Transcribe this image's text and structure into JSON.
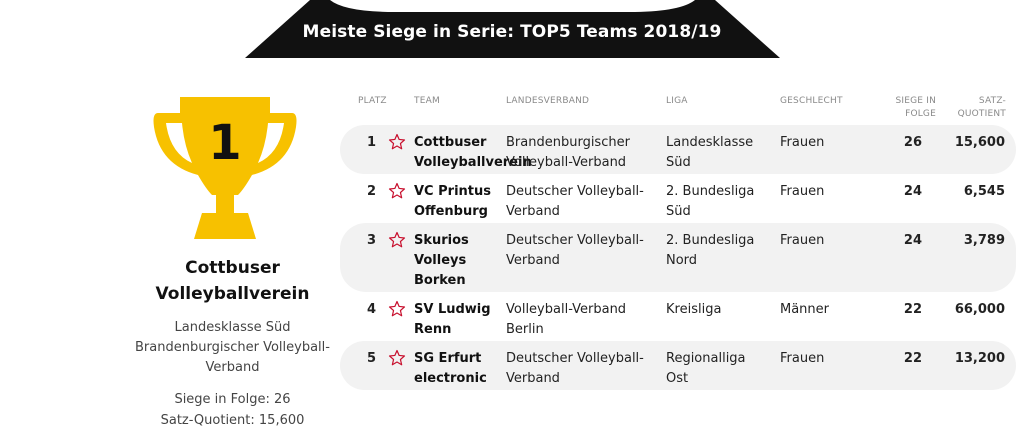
{
  "banner": {
    "title": "Meiste Siege in Serie: TOP5 Teams 2018/19"
  },
  "winner": {
    "rank": "1",
    "name_line1": "Cottbuser",
    "name_line2": "Volleyballverein",
    "liga": "Landesklasse Süd",
    "verband_line1": "Brandenburgischer Volleyball-",
    "verband_line2": "Verband",
    "siege": "Siege in Folge: 26",
    "quotient": "Satz-Quotient: 15,600",
    "trophy_color": "#f7c100"
  },
  "table": {
    "headers": {
      "platz": "PLATZ",
      "team": "TEAM",
      "verband": "LANDESVERBAND",
      "liga": "LIGA",
      "geschlecht": "GESCHLECHT",
      "siege_l1": "SIEGE IN",
      "siege_l2": "FOLGE",
      "satz_l1": "SATZ-",
      "satz_l2": "QUOTIENT"
    },
    "rows": [
      {
        "rank": "1",
        "team_l1": "Cottbuser",
        "team_l2": "Volleyballverein",
        "team_l3": "",
        "verband_l1": "Brandenburgischer",
        "verband_l2": "Volleyball-Verband",
        "liga_l1": "Landesklasse",
        "liga_l2": "Süd",
        "geschlecht": "Frauen",
        "siege": "26",
        "quotient": "15,600"
      },
      {
        "rank": "2",
        "team_l1": "VC Printus",
        "team_l2": "Offenburg",
        "team_l3": "",
        "verband_l1": "Deutscher Volleyball-",
        "verband_l2": "Verband",
        "liga_l1": "2. Bundesliga",
        "liga_l2": "Süd",
        "geschlecht": "Frauen",
        "siege": "24",
        "quotient": "6,545"
      },
      {
        "rank": "3",
        "team_l1": "Skurios",
        "team_l2": "Volleys",
        "team_l3": "Borken",
        "verband_l1": "Deutscher Volleyball-",
        "verband_l2": "Verband",
        "liga_l1": "2. Bundesliga",
        "liga_l2": "Nord",
        "geschlecht": "Frauen",
        "siege": "24",
        "quotient": "3,789"
      },
      {
        "rank": "4",
        "team_l1": "SV Ludwig",
        "team_l2": "Renn",
        "team_l3": "",
        "verband_l1": "Volleyball-Verband",
        "verband_l2": "Berlin",
        "liga_l1": "Kreisliga",
        "liga_l2": "",
        "geschlecht": "Männer",
        "siege": "22",
        "quotient": "66,000"
      },
      {
        "rank": "5",
        "team_l1": "SG Erfurt",
        "team_l2": "electronic",
        "team_l3": "",
        "verband_l1": "Deutscher Volleyball-",
        "verband_l2": "Verband",
        "liga_l1": "Regionalliga",
        "liga_l2": "Ost",
        "geschlecht": "Frauen",
        "siege": "22",
        "quotient": "13,200"
      }
    ]
  },
  "colors": {
    "banner": "#111111",
    "star": "#c8102e",
    "row_alt": "#f2f2f2"
  }
}
